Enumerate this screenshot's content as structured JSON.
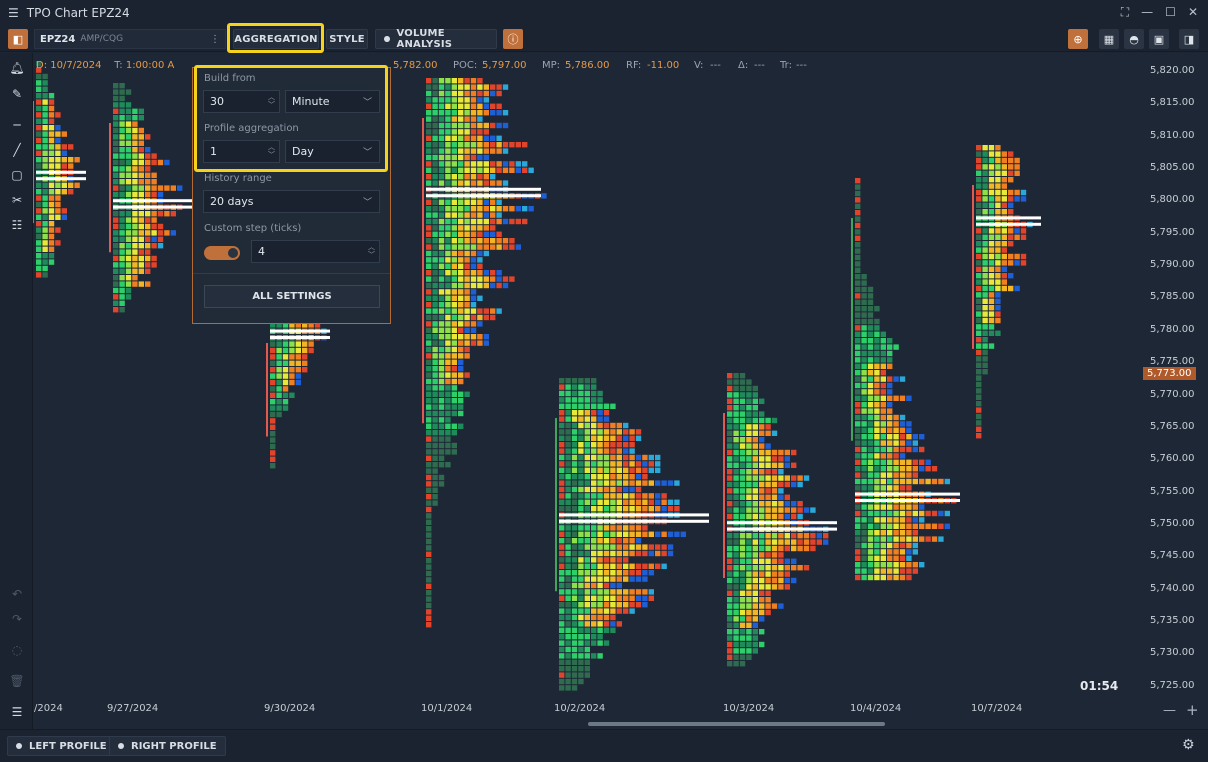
{
  "window": {
    "title": "TPO Chart EPZ24"
  },
  "toolbar": {
    "symbol": "EPZ24",
    "symbol_source": "AMP/CQG",
    "aggregation_label": "AGGREGATION",
    "style_label": "STYLE",
    "volume_analysis_label": "VOLUME ANALYSIS"
  },
  "status": {
    "date": "D: 10/7/2024",
    "time_label": "T:",
    "time_value": "1:00:00 A",
    "price_value": "5,782.00",
    "poc_label": "POC:",
    "poc_value": "5,797.00",
    "mp_label": "MP:",
    "mp_value": "5,786.00",
    "rf_label": "RF:",
    "rf_value": "-11.00",
    "v_label": "V:",
    "v_value": "---",
    "delta_label": "Δ:",
    "delta_value": "---",
    "tr_label": "Tr:",
    "tr_value": "---"
  },
  "popup": {
    "build_from_label": "Build from",
    "build_from_value": "30",
    "build_from_unit": "Minute",
    "profile_agg_label": "Profile aggregation",
    "profile_agg_value": "1",
    "profile_agg_unit": "Day",
    "history_label": "History range",
    "history_value": "20 days",
    "custom_step_label": "Custom step (ticks)",
    "custom_step_enabled": true,
    "custom_step_value": "4",
    "all_settings_label": "ALL SETTINGS"
  },
  "yaxis": {
    "labels": [
      "5,820.00",
      "5,815.00",
      "5,810.00",
      "5,805.00",
      "5,800.00",
      "5,795.00",
      "5,790.00",
      "5,785.00",
      "5,780.00",
      "5,775.00",
      "5,770.00",
      "5,765.00",
      "5,760.00",
      "5,755.00",
      "5,750.00",
      "5,745.00",
      "5,740.00",
      "5,735.00",
      "5,730.00",
      "5,725.00"
    ],
    "current_price": "5,773.00"
  },
  "xaxis": {
    "labels": [
      "/2024",
      "9/27/2024",
      "9/30/2024",
      "10/1/2024",
      "10/2/2024",
      "10/3/2024",
      "10/4/2024",
      "10/7/2024"
    ]
  },
  "timer": "01:54",
  "bottom": {
    "left_profile": "LEFT PROFILE",
    "right_profile": "RIGHT PROFILE"
  },
  "colors": {
    "accent": "#c0703a",
    "highlight": "#f5d21c",
    "bg": "#1e2735"
  }
}
